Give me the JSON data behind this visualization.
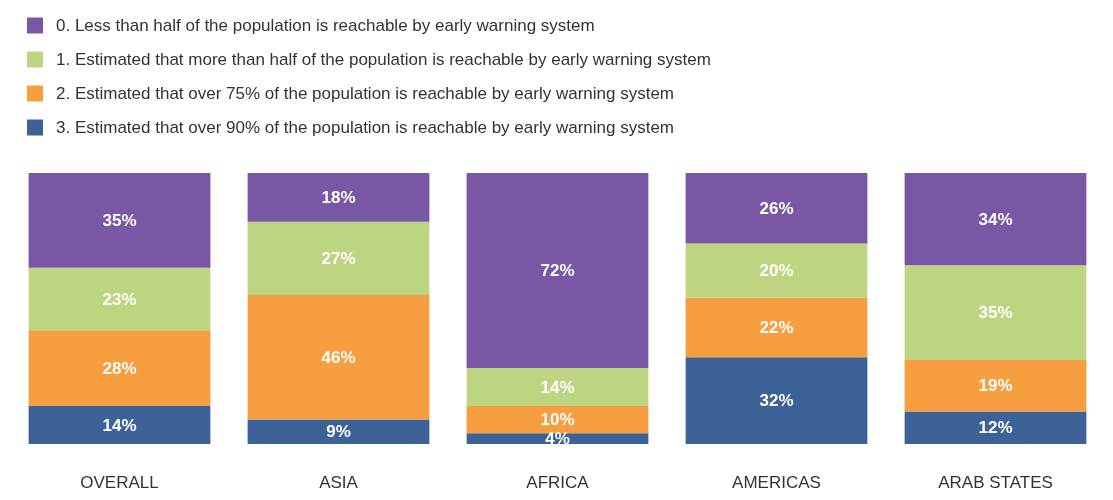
{
  "chart_data": {
    "type": "bar",
    "stacked": true,
    "legend": "top left",
    "grid": false,
    "categories": [
      "OVERALL",
      "ASIA",
      "AFRICA",
      "AMERICAS",
      "ARAB STATES"
    ],
    "series": [
      {
        "name": "3. Estimated that over 90% of the population is reachable by early warning system",
        "color": "#3c6297",
        "values": [
          14,
          9,
          4,
          32,
          12
        ],
        "value_labels": [
          "14%",
          "9%",
          "4%",
          "32%",
          "12%"
        ]
      },
      {
        "name": "2. Estimated that over 75% of the population is reachable by early warning system",
        "color": "#f69e40",
        "values": [
          28,
          46,
          10,
          22,
          19
        ],
        "value_labels": [
          "28%",
          "46%",
          "10%",
          "22%",
          "19%"
        ]
      },
      {
        "name": "1. Estimated that more than half of the population is reachable by early warning system",
        "color": "#bdd581",
        "values": [
          23,
          27,
          14,
          20,
          35
        ],
        "value_labels": [
          "23%",
          "27%",
          "14%",
          "20%",
          "35%"
        ]
      },
      {
        "name": "0. Less than half of the population is reachable by early warning system",
        "color": "#7a57a5",
        "values": [
          35,
          18,
          72,
          26,
          34
        ],
        "value_labels": [
          "35%",
          "18%",
          "72%",
          "26%",
          "34%"
        ]
      }
    ]
  }
}
